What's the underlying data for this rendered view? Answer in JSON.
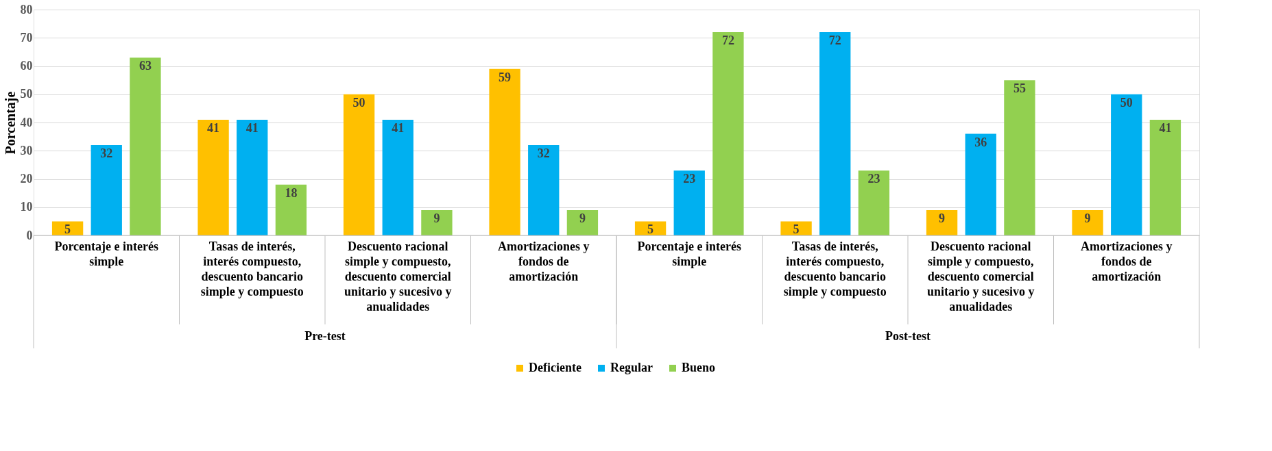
{
  "chart_data": {
    "type": "bar",
    "ylabel": "Porcentaje",
    "categories": [
      "Porcentaje e interés simple",
      "Tasas de interés, interés compuesto, descuento bancario simple y compuesto",
      "Descuento racional simple y compuesto, descuento comercial unitario y sucesivo y anualidades",
      "Amortizaciones y fondos de amortización",
      "Porcentaje e interés simple",
      "Tasas de interés, interés compuesto, descuento bancario simple y compuesto",
      "Descuento racional simple y compuesto, descuento comercial unitario y sucesivo y anualidades",
      "Amortizaciones y fondos de amortización"
    ],
    "series": [
      {
        "name": "Deficiente",
        "color": "#ffc000",
        "values": [
          5,
          41,
          50,
          59,
          5,
          5,
          9,
          9
        ]
      },
      {
        "name": "Regular",
        "color": "#00b0f0",
        "values": [
          32,
          41,
          41,
          32,
          23,
          72,
          36,
          50
        ]
      },
      {
        "name": "Bueno",
        "color": "#92d050",
        "values": [
          63,
          18,
          9,
          9,
          72,
          23,
          55,
          41
        ]
      }
    ],
    "annotations": [
      "Pre-test",
      "Post-test"
    ],
    "ylim": [
      0,
      80
    ],
    "yticks": [
      0,
      10,
      20,
      30,
      40,
      50,
      60,
      70,
      80
    ],
    "grid": "y",
    "legend": "bottom",
    "data_labels": true
  }
}
